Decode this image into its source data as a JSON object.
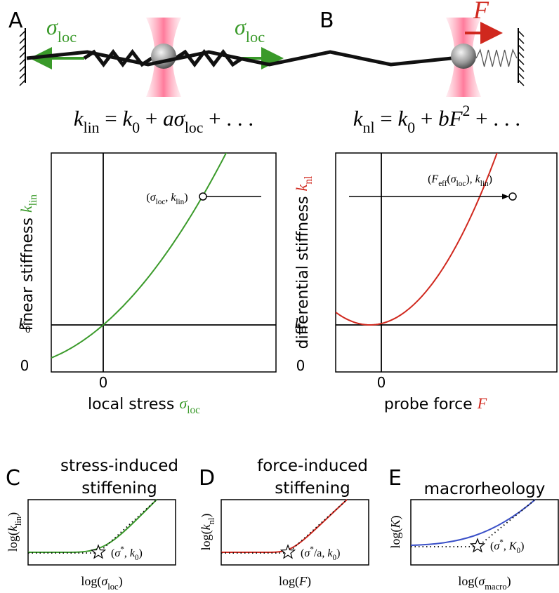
{
  "panels": [
    {
      "label": "A",
      "illustration": {
        "force_left": {
          "base": "σ",
          "sub": "loc"
        },
        "force_right": {
          "base": "σ",
          "sub": "loc"
        }
      },
      "equation": [
        {
          "base": "k",
          "sub": "lin"
        },
        " = ",
        {
          "base": "k",
          "sub": "0"
        },
        " + ",
        {
          "base": "aσ",
          "sub": "loc"
        },
        " + . . ."
      ],
      "plot": {
        "y_label": [
          "linear stiffness ",
          {
            "base": "k",
            "sub": "lin"
          }
        ],
        "x_label": [
          "local stress ",
          {
            "base": "σ",
            "sub": "loc"
          }
        ],
        "y_ticks": [
          {
            "base": "k",
            "sub": "0"
          },
          "0"
        ],
        "x_ticks": [
          "0"
        ],
        "annotation": [
          "(",
          {
            "base": "σ",
            "sub": "loc"
          },
          ", ",
          {
            "base": "k",
            "sub": "lin"
          },
          ")"
        ]
      }
    },
    {
      "label": "B",
      "illustration": {
        "force": {
          "base": "F"
        }
      },
      "equation": [
        {
          "base": "k",
          "sub": "nl"
        },
        " = ",
        {
          "base": "k",
          "sub": "0"
        },
        " + ",
        {
          "base": "bF",
          "sup": "2"
        },
        " + . . ."
      ],
      "plot": {
        "y_label": [
          "differential stiffness ",
          {
            "base": "k",
            "sub": "nl"
          }
        ],
        "x_label": [
          "probe force ",
          {
            "base": "F"
          }
        ],
        "y_ticks": [
          {
            "base": "k",
            "sub": "0"
          },
          "0"
        ],
        "x_ticks": [
          "0"
        ],
        "annotation": [
          "(",
          {
            "base": "F",
            "sub": "eff"
          },
          "(",
          {
            "base": "σ",
            "sub": "loc"
          },
          "), ",
          {
            "base": "k",
            "sub": "lin"
          },
          ")"
        ]
      }
    }
  ],
  "insets": [
    {
      "label": "C",
      "title": [
        "stress-induced",
        "stiffening"
      ],
      "y_label": [
        "log(",
        {
          "base": "k",
          "sub": "lin"
        },
        ")"
      ],
      "x_label": [
        "log(",
        {
          "base": "σ",
          "sub": "loc"
        },
        ")"
      ],
      "annotation": [
        "(",
        {
          "base": "σ",
          "sup": "*"
        },
        ",  ",
        {
          "base": "k",
          "sub": "0"
        },
        ")"
      ]
    },
    {
      "label": "D",
      "title": [
        "force-induced",
        "stiffening"
      ],
      "y_label": [
        "log(",
        {
          "base": "k",
          "sub": "nl"
        },
        ")"
      ],
      "x_label": [
        "log(",
        {
          "base": "F"
        },
        ")"
      ],
      "annotation": [
        "(",
        {
          "base": "σ",
          "sup": "*"
        },
        "/a,  ",
        {
          "base": "k",
          "sub": "0"
        },
        ")"
      ]
    },
    {
      "label": "E",
      "title": [
        "macrorheology"
      ],
      "y_label": [
        "log(",
        {
          "base": "K"
        },
        ")"
      ],
      "x_label": [
        "log(",
        {
          "base": "σ",
          "sub": "macro"
        },
        ")"
      ],
      "annotation": [
        "(",
        {
          "base": "σ",
          "sup": "*"
        },
        ", ",
        {
          "base": "K",
          "sub": "0"
        },
        ")"
      ]
    }
  ]
}
